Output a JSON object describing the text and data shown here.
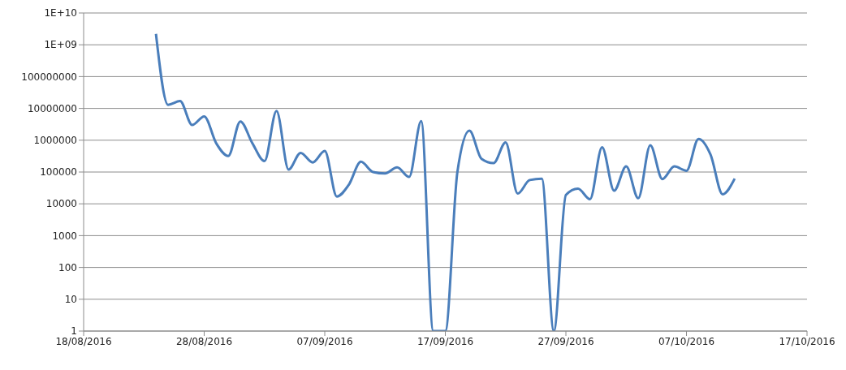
{
  "chart_data": {
    "type": "line",
    "log": "y",
    "grid": "y",
    "line_style": "solid",
    "xlim": [
      "2016-08-18",
      "2016-10-17"
    ],
    "xticks": [
      {
        "value": "2016-08-18",
        "label": "18/08/2016"
      },
      {
        "value": "2016-08-28",
        "label": "28/08/2016"
      },
      {
        "value": "2016-09-07",
        "label": "07/09/2016"
      },
      {
        "value": "2016-09-17",
        "label": "17/09/2016"
      },
      {
        "value": "2016-09-27",
        "label": "27/09/2016"
      },
      {
        "value": "2016-10-07",
        "label": "07/10/2016"
      },
      {
        "value": "2016-10-17",
        "label": "17/10/2016"
      }
    ],
    "ylim": [
      1,
      10000000000
    ],
    "yticks": [
      1,
      10,
      100,
      1000,
      10000,
      100000,
      1000000,
      10000000,
      100000000,
      {
        "value": 1000000000,
        "label": "1E+09"
      },
      {
        "value": 10000000000,
        "label": "1E+10"
      }
    ],
    "x": [
      "2016-08-24",
      "2016-08-25",
      "2016-08-26",
      "2016-08-27",
      "2016-08-28",
      "2016-08-29",
      "2016-08-30",
      "2016-08-31",
      "2016-09-01",
      "2016-09-02",
      "2016-09-03",
      "2016-09-04",
      "2016-09-05",
      "2016-09-06",
      "2016-09-07",
      "2016-09-08",
      "2016-09-09",
      "2016-09-10",
      "2016-09-11",
      "2016-09-12",
      "2016-09-13",
      "2016-09-14",
      "2016-09-15",
      "2016-09-16",
      "2016-09-17",
      "2016-09-18",
      "2016-09-19",
      "2016-09-20",
      "2016-09-21",
      "2016-09-22",
      "2016-09-23",
      "2016-09-24",
      "2016-09-25",
      "2016-09-26",
      "2016-09-27",
      "2016-09-28",
      "2016-09-29",
      "2016-09-30",
      "2016-10-01",
      "2016-10-02",
      "2016-10-03",
      "2016-10-04",
      "2016-10-05",
      "2016-10-06",
      "2016-10-07",
      "2016-10-08",
      "2016-10-09",
      "2016-10-10",
      "2016-10-11"
    ],
    "series": [
      {
        "color": "#4a7ebb",
        "values": [
          2200000000,
          13000000,
          17000000,
          3000000,
          5600000,
          800000,
          320000,
          3900000,
          800000,
          220000,
          8300000,
          120000,
          400000,
          200000,
          460000,
          17000,
          40000,
          210000,
          100000,
          90000,
          140000,
          70000,
          4000000,
          1,
          1,
          100000,
          2000000,
          260000,
          190000,
          850000,
          21000,
          56000,
          62000,
          1,
          19000,
          30000,
          14000,
          600000,
          26000,
          150000,
          15000,
          690000,
          60000,
          150000,
          110000,
          1100000,
          350000,
          20000,
          62000
        ]
      }
    ]
  }
}
